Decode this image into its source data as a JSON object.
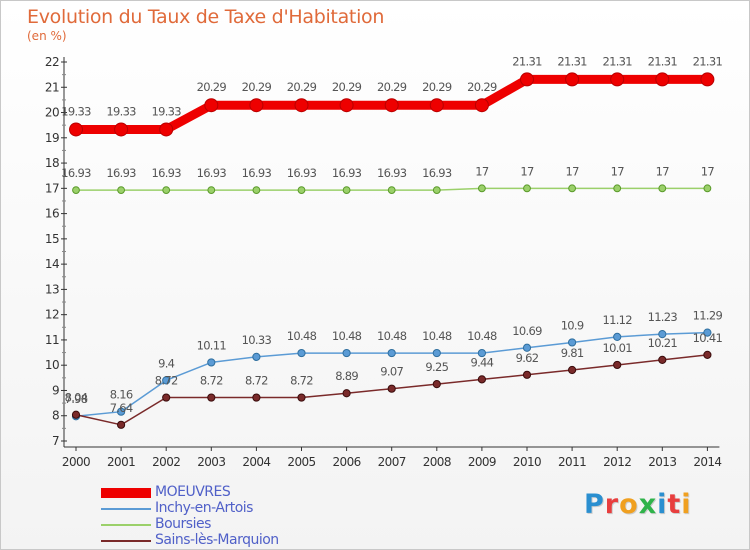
{
  "header": {
    "title": "Evolution du Taux de Taxe d'Habitation",
    "subtitle": "(en %)"
  },
  "logo": {
    "text": "Proxiti",
    "colors": [
      "#2a8fd0",
      "#e83e3e",
      "#f0a020",
      "#2fb34a",
      "#2a8fd0",
      "#e83e3e",
      "#f0a020"
    ]
  },
  "chart_data": {
    "type": "line",
    "title": "Evolution du Taux de Taxe d'Habitation",
    "ylabel": "(en %)",
    "xlabel": "",
    "x": [
      "2000",
      "2001",
      "2002",
      "2003",
      "2004",
      "2005",
      "2006",
      "2007",
      "2008",
      "2009",
      "2010",
      "2011",
      "2012",
      "2013",
      "2014"
    ],
    "ylim": [
      7,
      22
    ],
    "yticks": [
      7,
      8,
      9,
      10,
      11,
      12,
      13,
      14,
      15,
      16,
      17,
      18,
      19,
      20,
      21,
      22
    ],
    "grid": false,
    "legend_position": "bottom-left",
    "series": [
      {
        "name": "MOEUVRES",
        "color": "#ee0000",
        "values": [
          19.33,
          19.33,
          19.33,
          20.29,
          20.29,
          20.29,
          20.29,
          20.29,
          20.29,
          20.29,
          21.31,
          21.31,
          21.31,
          21.31,
          21.31
        ],
        "labels": [
          "19.33",
          "19.33",
          "19.33",
          "20.29",
          "20.29",
          "20.29",
          "20.29",
          "20.29",
          "20.29",
          "20.29",
          "21.31",
          "21.31",
          "21.31",
          "21.31",
          "21.31"
        ]
      },
      {
        "name": "Inchy-en-Artois",
        "color": "#5b9bd5",
        "values": [
          7.98,
          8.16,
          9.4,
          10.11,
          10.33,
          10.48,
          10.48,
          10.48,
          10.48,
          10.48,
          10.69,
          10.9,
          11.12,
          11.23,
          11.29
        ],
        "labels": [
          "7.98",
          "8.16",
          "9.4",
          "10.11",
          "10.33",
          "10.48",
          "10.48",
          "10.48",
          "10.48",
          "10.48",
          "10.69",
          "10.9",
          "11.12",
          "11.23",
          "11.29"
        ]
      },
      {
        "name": "Boursies",
        "color": "#9bd06a",
        "values": [
          16.93,
          16.93,
          16.93,
          16.93,
          16.93,
          16.93,
          16.93,
          16.93,
          16.93,
          17,
          17,
          17,
          17,
          17,
          17
        ],
        "labels": [
          "16.93",
          "16.93",
          "16.93",
          "16.93",
          "16.93",
          "16.93",
          "16.93",
          "16.93",
          "16.93",
          "17",
          "17",
          "17",
          "17",
          "17",
          "17"
        ]
      },
      {
        "name": "Sains-lès-Marquion",
        "color": "#7a2a2a",
        "values": [
          8.04,
          7.64,
          8.72,
          8.72,
          8.72,
          8.72,
          8.89,
          9.07,
          9.25,
          9.44,
          9.62,
          9.81,
          10.01,
          10.21,
          10.41
        ],
        "labels": [
          "8.04",
          "7.64",
          "8.72",
          "8.72",
          "8.72",
          "8.72",
          "8.89",
          "9.07",
          "9.25",
          "9.44",
          "9.62",
          "9.81",
          "10.01",
          "10.21",
          "10.41"
        ]
      }
    ]
  }
}
